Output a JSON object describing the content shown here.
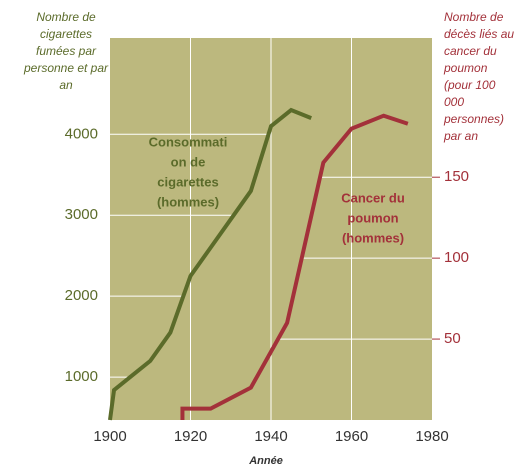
{
  "chart_data": {
    "type": "line",
    "x_label": "Année",
    "y_label_lines": [
      "Nombre de",
      "cigarettes",
      "fumées par",
      "personne et par",
      "an"
    ],
    "y2_label_lines": [
      "Nombre de",
      "décès liés au",
      "cancer du",
      "poumon",
      "(pour 100",
      "000",
      "personnes)",
      "par an"
    ],
    "xlim": [
      1900,
      1980
    ],
    "xticks": [
      1900,
      1920,
      1940,
      1960,
      1980
    ],
    "xgrid": [
      1920,
      1940,
      1960
    ],
    "ylim": [
      470,
      5190
    ],
    "yticks": [
      1000,
      2000,
      3000,
      4000
    ],
    "y2lim": [
      0,
      236
    ],
    "y2ticks": [
      50,
      100,
      150
    ],
    "background": "#bcb87e",
    "series": [
      {
        "label_lines": [
          "Consommati",
          "on de",
          "cigarettes",
          "(hommes)"
        ],
        "color": "#5b6b2a",
        "x": [
          1900,
          1901,
          1910,
          1915,
          1920,
          1925,
          1930,
          1935,
          1940,
          1945,
          1950
        ],
        "values": [
          470,
          840,
          1200,
          1550,
          2250,
          2600,
          2950,
          3300,
          4100,
          4300,
          4200
        ]
      },
      {
        "label_lines": [
          "Cancer du",
          "poumon",
          "(hommes)"
        ],
        "color": "#a3313a",
        "axis": "y2",
        "x": [
          1918,
          1918,
          1925,
          1935,
          1944,
          1953,
          1960,
          1968,
          1974
        ],
        "values": [
          0,
          7,
          7,
          20,
          60,
          159,
          180,
          188,
          183
        ]
      }
    ]
  }
}
